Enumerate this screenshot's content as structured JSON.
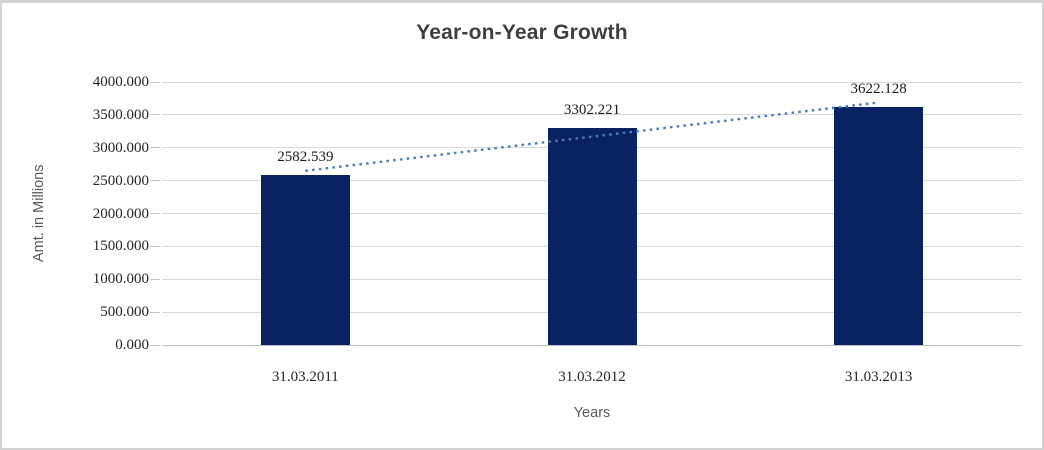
{
  "chart_data": {
    "type": "bar",
    "title": "Year-on-Year Growth",
    "xlabel": "Years",
    "ylabel": "Amt. in Millions",
    "categories": [
      "31.03.2011",
      "31.03.2012",
      "31.03.2013"
    ],
    "values": [
      2582.539,
      3302.221,
      3622.128
    ],
    "data_labels": [
      "2582.539",
      "3302.221",
      "3622.128"
    ],
    "ylim": [
      0,
      4000
    ],
    "ytick_step": 500,
    "yticks": [
      "4000.000",
      "3500.000",
      "3000.000",
      "2500.000",
      "2000.000",
      "1500.000",
      "1000.000",
      "500.000",
      "0.000"
    ],
    "grid": "horizontal",
    "legend": "none",
    "trendline": {
      "type": "linear",
      "style": "dotted",
      "fit_values": "least-squares over values"
    },
    "colors": {
      "bar": "#0a2162",
      "trendline": "#4a7dbd",
      "gridline": "#d9d9d9",
      "axis_line": "#bfbfbf",
      "title_text": "#3f3f3f",
      "axis_title_text": "#595959",
      "tick_text": "#262626",
      "border": "#d2d2d2",
      "background": "#ffffff"
    }
  }
}
